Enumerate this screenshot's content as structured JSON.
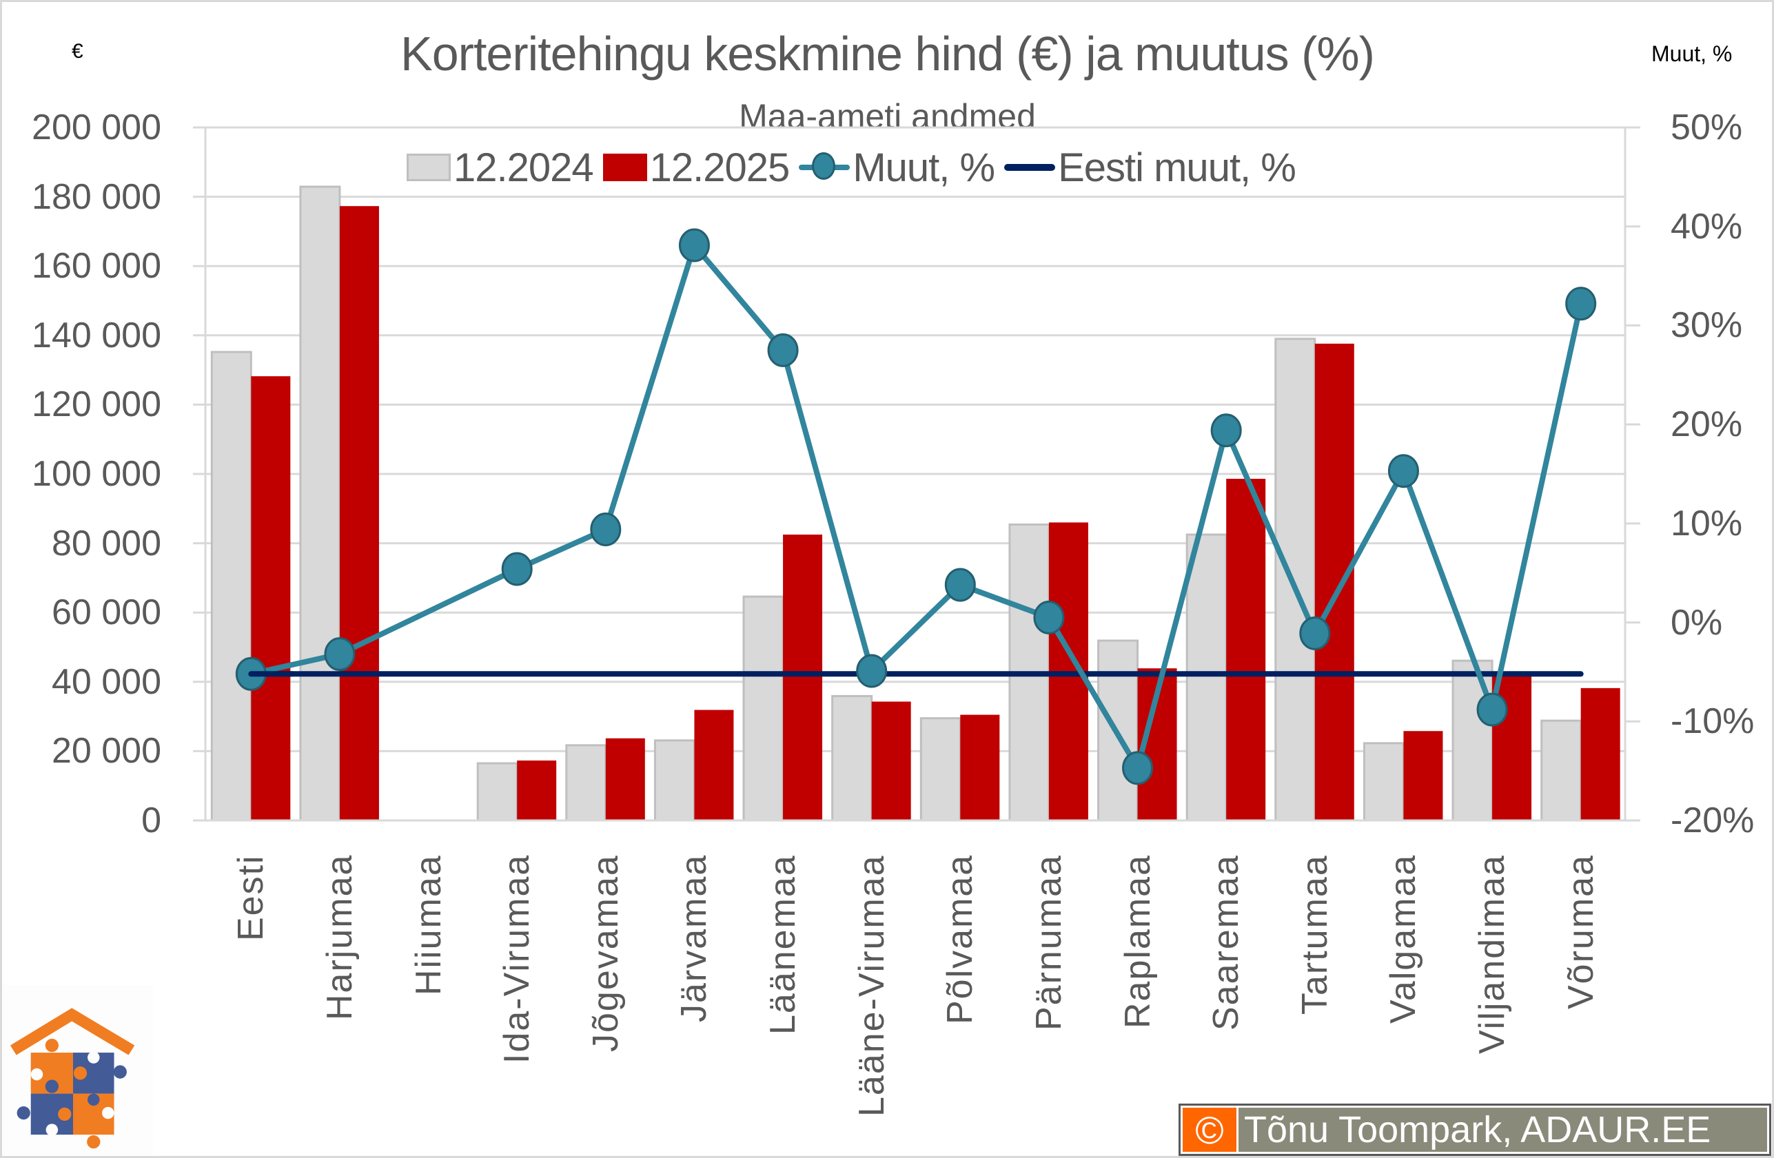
{
  "header": {
    "title": "Korteritehingu keskmine hind (€) ja muutus (%)",
    "subtitle": "Maa-ameti andmed",
    "left_axis_unit": "€",
    "right_axis_unit": "Muut, %"
  },
  "legend": {
    "series_2024": "12.2024",
    "series_2025": "12.2025",
    "change": "Muut, %",
    "eesti_change": "Eesti muut, %"
  },
  "colors": {
    "bar_2024": "#d9d9d9",
    "bar_2024_border": "#bfbfbf",
    "bar_2025": "#c00000",
    "change_line": "#31859c",
    "eesti_line": "#002060",
    "grid": "#d9d9d9",
    "text": "#595959"
  },
  "axes": {
    "left_ticks": [
      "200 000",
      "180 000",
      "160 000",
      "140 000",
      "120 000",
      "100 000",
      "80 000",
      "60 000",
      "40 000",
      "20 000",
      "0"
    ],
    "right_ticks": [
      "50%",
      "40%",
      "30%",
      "20%",
      "10%",
      "0%",
      "-10%",
      "-20%"
    ]
  },
  "chart_data": {
    "type": "bar",
    "title": "Korteritehingu keskmine hind (€) ja muutus (%)",
    "subtitle": "Maa-ameti andmed",
    "xlabel": "",
    "ylabel": "€",
    "y2label": "Muut, %",
    "ylim": [
      0,
      200000
    ],
    "y2lim": [
      -20,
      50
    ],
    "grid": true,
    "legend_position": "top",
    "categories": [
      "Eesti",
      "Harjumaa",
      "Hiiumaa",
      "Ida-Virumaa",
      "Jõgevamaa",
      "Järvamaa",
      "Läänemaa",
      "Lääne-Virumaa",
      "Põlvamaa",
      "Pärnumaa",
      "Raplamaa",
      "Saaremaa",
      "Tartumaa",
      "Valgamaa",
      "Viljandimaa",
      "Võrumaa"
    ],
    "series": [
      {
        "name": "12.2024",
        "type": "bar",
        "axis": "left",
        "values": [
          135200,
          182900,
          null,
          16500,
          21700,
          23100,
          64600,
          35900,
          29500,
          85400,
          51900,
          82500,
          139000,
          22300,
          46100,
          28800
        ]
      },
      {
        "name": "12.2025",
        "type": "bar",
        "axis": "left",
        "values": [
          128200,
          177300,
          null,
          17300,
          23700,
          31900,
          82500,
          34300,
          30500,
          86000,
          43900,
          98600,
          137600,
          25800,
          42000,
          38200
        ]
      },
      {
        "name": "Muut, %",
        "type": "line",
        "axis": "right",
        "values": [
          -5.2,
          -3.2,
          null,
          5.4,
          9.4,
          38.1,
          27.5,
          -4.9,
          3.8,
          0.5,
          -14.7,
          19.4,
          -1.1,
          15.3,
          -8.8,
          32.2
        ]
      },
      {
        "name": "Eesti muut, %",
        "type": "line",
        "axis": "right",
        "values": [
          -5.2,
          -5.2,
          -5.2,
          -5.2,
          -5.2,
          -5.2,
          -5.2,
          -5.2,
          -5.2,
          -5.2,
          -5.2,
          -5.2,
          -5.2,
          -5.2,
          -5.2,
          -5.2
        ]
      }
    ]
  },
  "footer": {
    "copyright_symbol": "©",
    "copyright_text": "Tõnu Toompark, ADAUR.EE"
  }
}
